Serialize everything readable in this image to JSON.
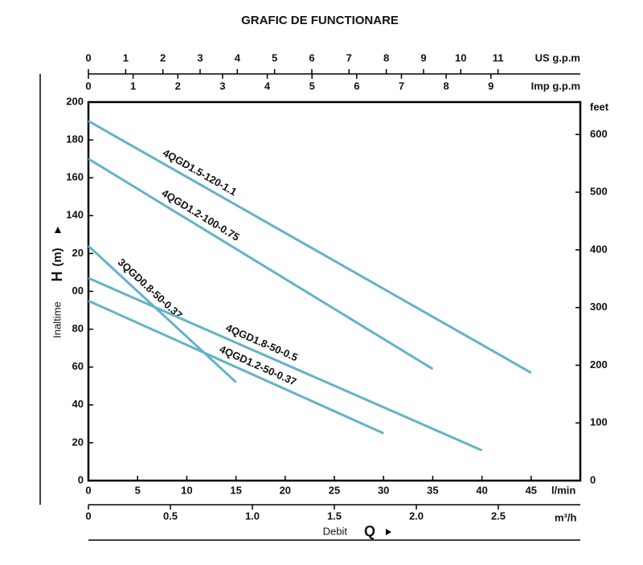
{
  "chart_data": {
    "type": "line",
    "title": "GRAFIC DE FUNCTIONARE",
    "x_label": "Debit",
    "x_symbol": "Q",
    "y_label": "Inaltime",
    "y_symbol": "H",
    "y_unit": "(m)",
    "x_unit": "l/min",
    "xlim": [
      0,
      50
    ],
    "xticks": [
      0,
      5,
      10,
      15,
      20,
      25,
      30,
      35,
      40,
      45
    ],
    "ylim": [
      0,
      200
    ],
    "yticks": [
      0,
      20,
      40,
      60,
      80,
      {
        "value": 100,
        "label": "00"
      },
      {
        "value": 120,
        "label": "20"
      },
      140,
      160,
      180,
      200
    ],
    "y2_unit": "feet",
    "y2lim": [
      0,
      656.2
    ],
    "y2ticks": [
      0,
      100,
      200,
      300,
      400,
      500,
      600
    ],
    "extra_x_axes": [
      {
        "unit": "US g.p.m",
        "lim": [
          0,
          13.21
        ],
        "ticks": [
          0,
          1,
          2,
          3,
          4,
          5,
          6,
          7,
          8,
          9,
          10,
          11
        ]
      },
      {
        "unit": "Imp g.p.m",
        "lim": [
          0,
          11
        ],
        "ticks": [
          0,
          1,
          2,
          3,
          4,
          5,
          6,
          7,
          8,
          9
        ]
      },
      {
        "unit": "m³/h",
        "lim": [
          0,
          3
        ],
        "ticks": [
          0,
          0.5,
          {
            "value": 1,
            "label": "1.0"
          },
          1.5,
          {
            "value": 2,
            "label": "2.0"
          },
          2.5
        ]
      }
    ],
    "series": [
      {
        "name": "4QGD1.5-120-1.1",
        "color": "#62b3c9",
        "x": [
          0,
          45
        ],
        "values": [
          190,
          57
        ]
      },
      {
        "name": "4QGD1.2-100-0.75",
        "color": "#62b3c9",
        "x": [
          0,
          35
        ],
        "values": [
          170,
          59
        ]
      },
      {
        "name": "3QGD0.8-50-0.37",
        "color": "#62b3c9",
        "x": [
          0,
          15
        ],
        "values": [
          124,
          52
        ]
      },
      {
        "name": "4QGD1.8-50-0.5",
        "color": "#62b3c9",
        "x": [
          0,
          40
        ],
        "values": [
          107,
          16
        ]
      },
      {
        "name": "4QGD1.2-50-0.37",
        "color": "#62b3c9",
        "x": [
          0,
          30
        ],
        "values": [
          95,
          25
        ]
      }
    ]
  }
}
